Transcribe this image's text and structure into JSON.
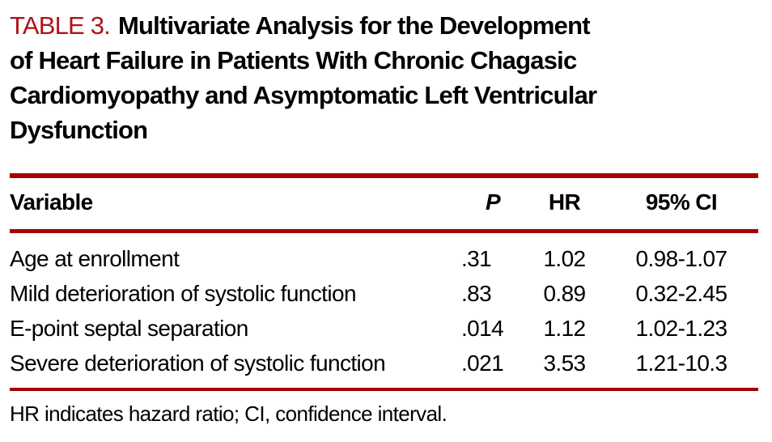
{
  "title": {
    "label": "TABLE 3.",
    "line1_rest": "Multivariate Analysis for the Development",
    "line2": "of Heart Failure in Patients With Chronic Chagasic",
    "line3": "Cardiomyopathy and Asymptomatic Left Ventricular",
    "line4": "Dysfunction"
  },
  "colors": {
    "rule_red": "#a30008",
    "label_red": "#b01217",
    "text": "#000000",
    "background": "#ffffff"
  },
  "table": {
    "columns": {
      "variable": "Variable",
      "p": "P",
      "hr": "HR",
      "ci": "95% CI"
    },
    "rows": [
      {
        "variable": "Age at enrollment",
        "p": ".31",
        "hr": "1.02",
        "ci": "0.98-1.07"
      },
      {
        "variable": "Mild deterioration of systolic function",
        "p": ".83",
        "hr": "0.89",
        "ci": "0.32-2.45"
      },
      {
        "variable": "E-point septal separation",
        "p": ".014",
        "hr": "1.12",
        "ci": "1.02-1.23"
      },
      {
        "variable": "Severe deterioration of systolic function",
        "p": ".021",
        "hr": "3.53",
        "ci": "1.21-10.3"
      }
    ]
  },
  "footnote": "HR indicates hazard ratio; CI, confidence interval."
}
